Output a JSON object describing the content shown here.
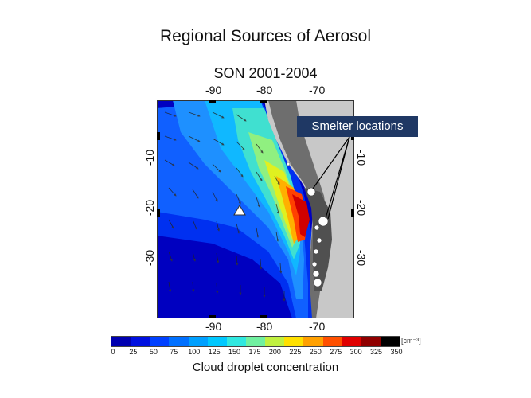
{
  "title": "Regional Sources of Aerosol",
  "subtitle": "SON 2001-2004",
  "map": {
    "x_ticks": [
      "-90",
      "-80",
      "-70"
    ],
    "y_ticks": [
      "-10",
      "-20",
      "-30"
    ],
    "callout": "Smelter locations"
  },
  "colorbar": {
    "labels": [
      "0",
      "25",
      "50",
      "75",
      "100",
      "125",
      "150",
      "175",
      "200",
      "225",
      "250",
      "275",
      "300",
      "325",
      "350"
    ],
    "unit": "[cm⁻³]",
    "title": "Cloud droplet concentration",
    "colors": [
      "#0000b0",
      "#0010e0",
      "#0040ff",
      "#0070ff",
      "#00a0ff",
      "#00c8ff",
      "#30e8e0",
      "#70f0a0",
      "#c0f040",
      "#ffe000",
      "#ffa000",
      "#ff5000",
      "#e00000",
      "#900000",
      "#000000"
    ]
  }
}
